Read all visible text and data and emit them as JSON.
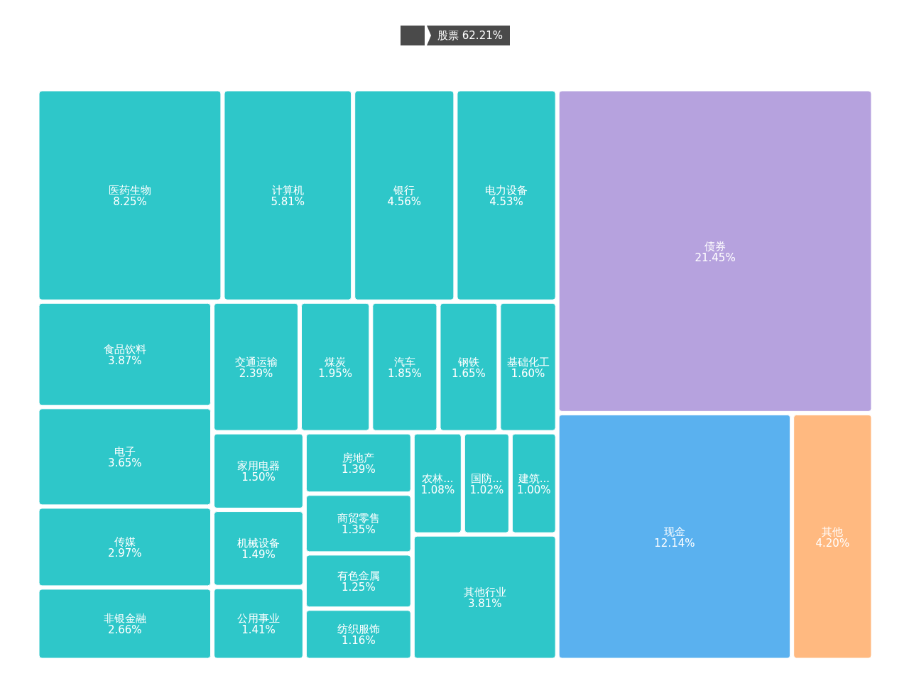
{
  "chart_data": {
    "type": "other",
    "title": "股票 62.21%",
    "categories": [
      "医药生物",
      "计算机",
      "银行",
      "电力设备",
      "食品饮料",
      "电子",
      "传媒",
      "非银金融",
      "交通运输",
      "煤炭",
      "汽车",
      "钢铁",
      "基础化工",
      "家用电器",
      "机械设备",
      "公用事业",
      "房地产",
      "商贸零售",
      "有色金属",
      "纺织服饰",
      "农林...",
      "国防...",
      "建筑...",
      "其他行业",
      "债券",
      "现金",
      "其他"
    ],
    "series": [
      {
        "color": "#2ec7c9",
        "values": [
          8.25,
          5.81,
          4.56,
          4.53,
          3.87,
          3.65,
          2.97,
          2.66,
          2.39,
          1.95,
          1.85,
          1.65,
          1.6,
          1.5,
          1.49,
          1.41,
          1.39,
          1.35,
          1.25,
          1.16,
          1.08,
          1.02,
          1.0,
          3.81,
          null,
          null,
          null
        ],
        "value_labels": [
          "8.25%",
          "5.81%",
          "4.56%",
          "4.53%",
          "3.87%",
          "3.65%",
          "2.97%",
          "2.66%",
          "2.39%",
          "1.95%",
          "1.85%",
          "1.65%",
          "1.60%",
          "1.50%",
          "1.49%",
          "1.41%",
          "1.39%",
          "1.35%",
          "1.25%",
          "1.16%",
          "1.08%",
          "1.02%",
          "1.00%",
          "3.81%",
          null,
          null,
          null
        ]
      },
      {
        "color": "#b6a2de",
        "values": [
          null,
          null,
          null,
          null,
          null,
          null,
          null,
          null,
          null,
          null,
          null,
          null,
          null,
          null,
          null,
          null,
          null,
          null,
          null,
          null,
          null,
          null,
          null,
          null,
          21.45,
          null,
          null
        ],
        "value_labels": [
          null,
          null,
          null,
          null,
          null,
          null,
          null,
          null,
          null,
          null,
          null,
          null,
          null,
          null,
          null,
          null,
          null,
          null,
          null,
          null,
          null,
          null,
          null,
          null,
          "21.45%",
          null,
          null
        ]
      },
      {
        "color": "#5ab1ef",
        "values": [
          null,
          null,
          null,
          null,
          null,
          null,
          null,
          null,
          null,
          null,
          null,
          null,
          null,
          null,
          null,
          null,
          null,
          null,
          null,
          null,
          null,
          null,
          null,
          null,
          null,
          12.14,
          null
        ],
        "value_labels": [
          null,
          null,
          null,
          null,
          null,
          null,
          null,
          null,
          null,
          null,
          null,
          null,
          null,
          null,
          null,
          null,
          null,
          null,
          null,
          null,
          null,
          null,
          null,
          null,
          null,
          "12.14%",
          null
        ]
      },
      {
        "color": "#ffb980",
        "values": [
          null,
          null,
          null,
          null,
          null,
          null,
          null,
          null,
          null,
          null,
          null,
          null,
          null,
          null,
          null,
          null,
          null,
          null,
          null,
          null,
          null,
          null,
          null,
          null,
          null,
          null,
          4.2
        ],
        "value_labels": [
          null,
          null,
          null,
          null,
          null,
          null,
          null,
          null,
          null,
          null,
          null,
          null,
          null,
          null,
          null,
          null,
          null,
          null,
          null,
          null,
          null,
          null,
          null,
          null,
          null,
          null,
          "4.20%"
        ]
      }
    ]
  }
}
